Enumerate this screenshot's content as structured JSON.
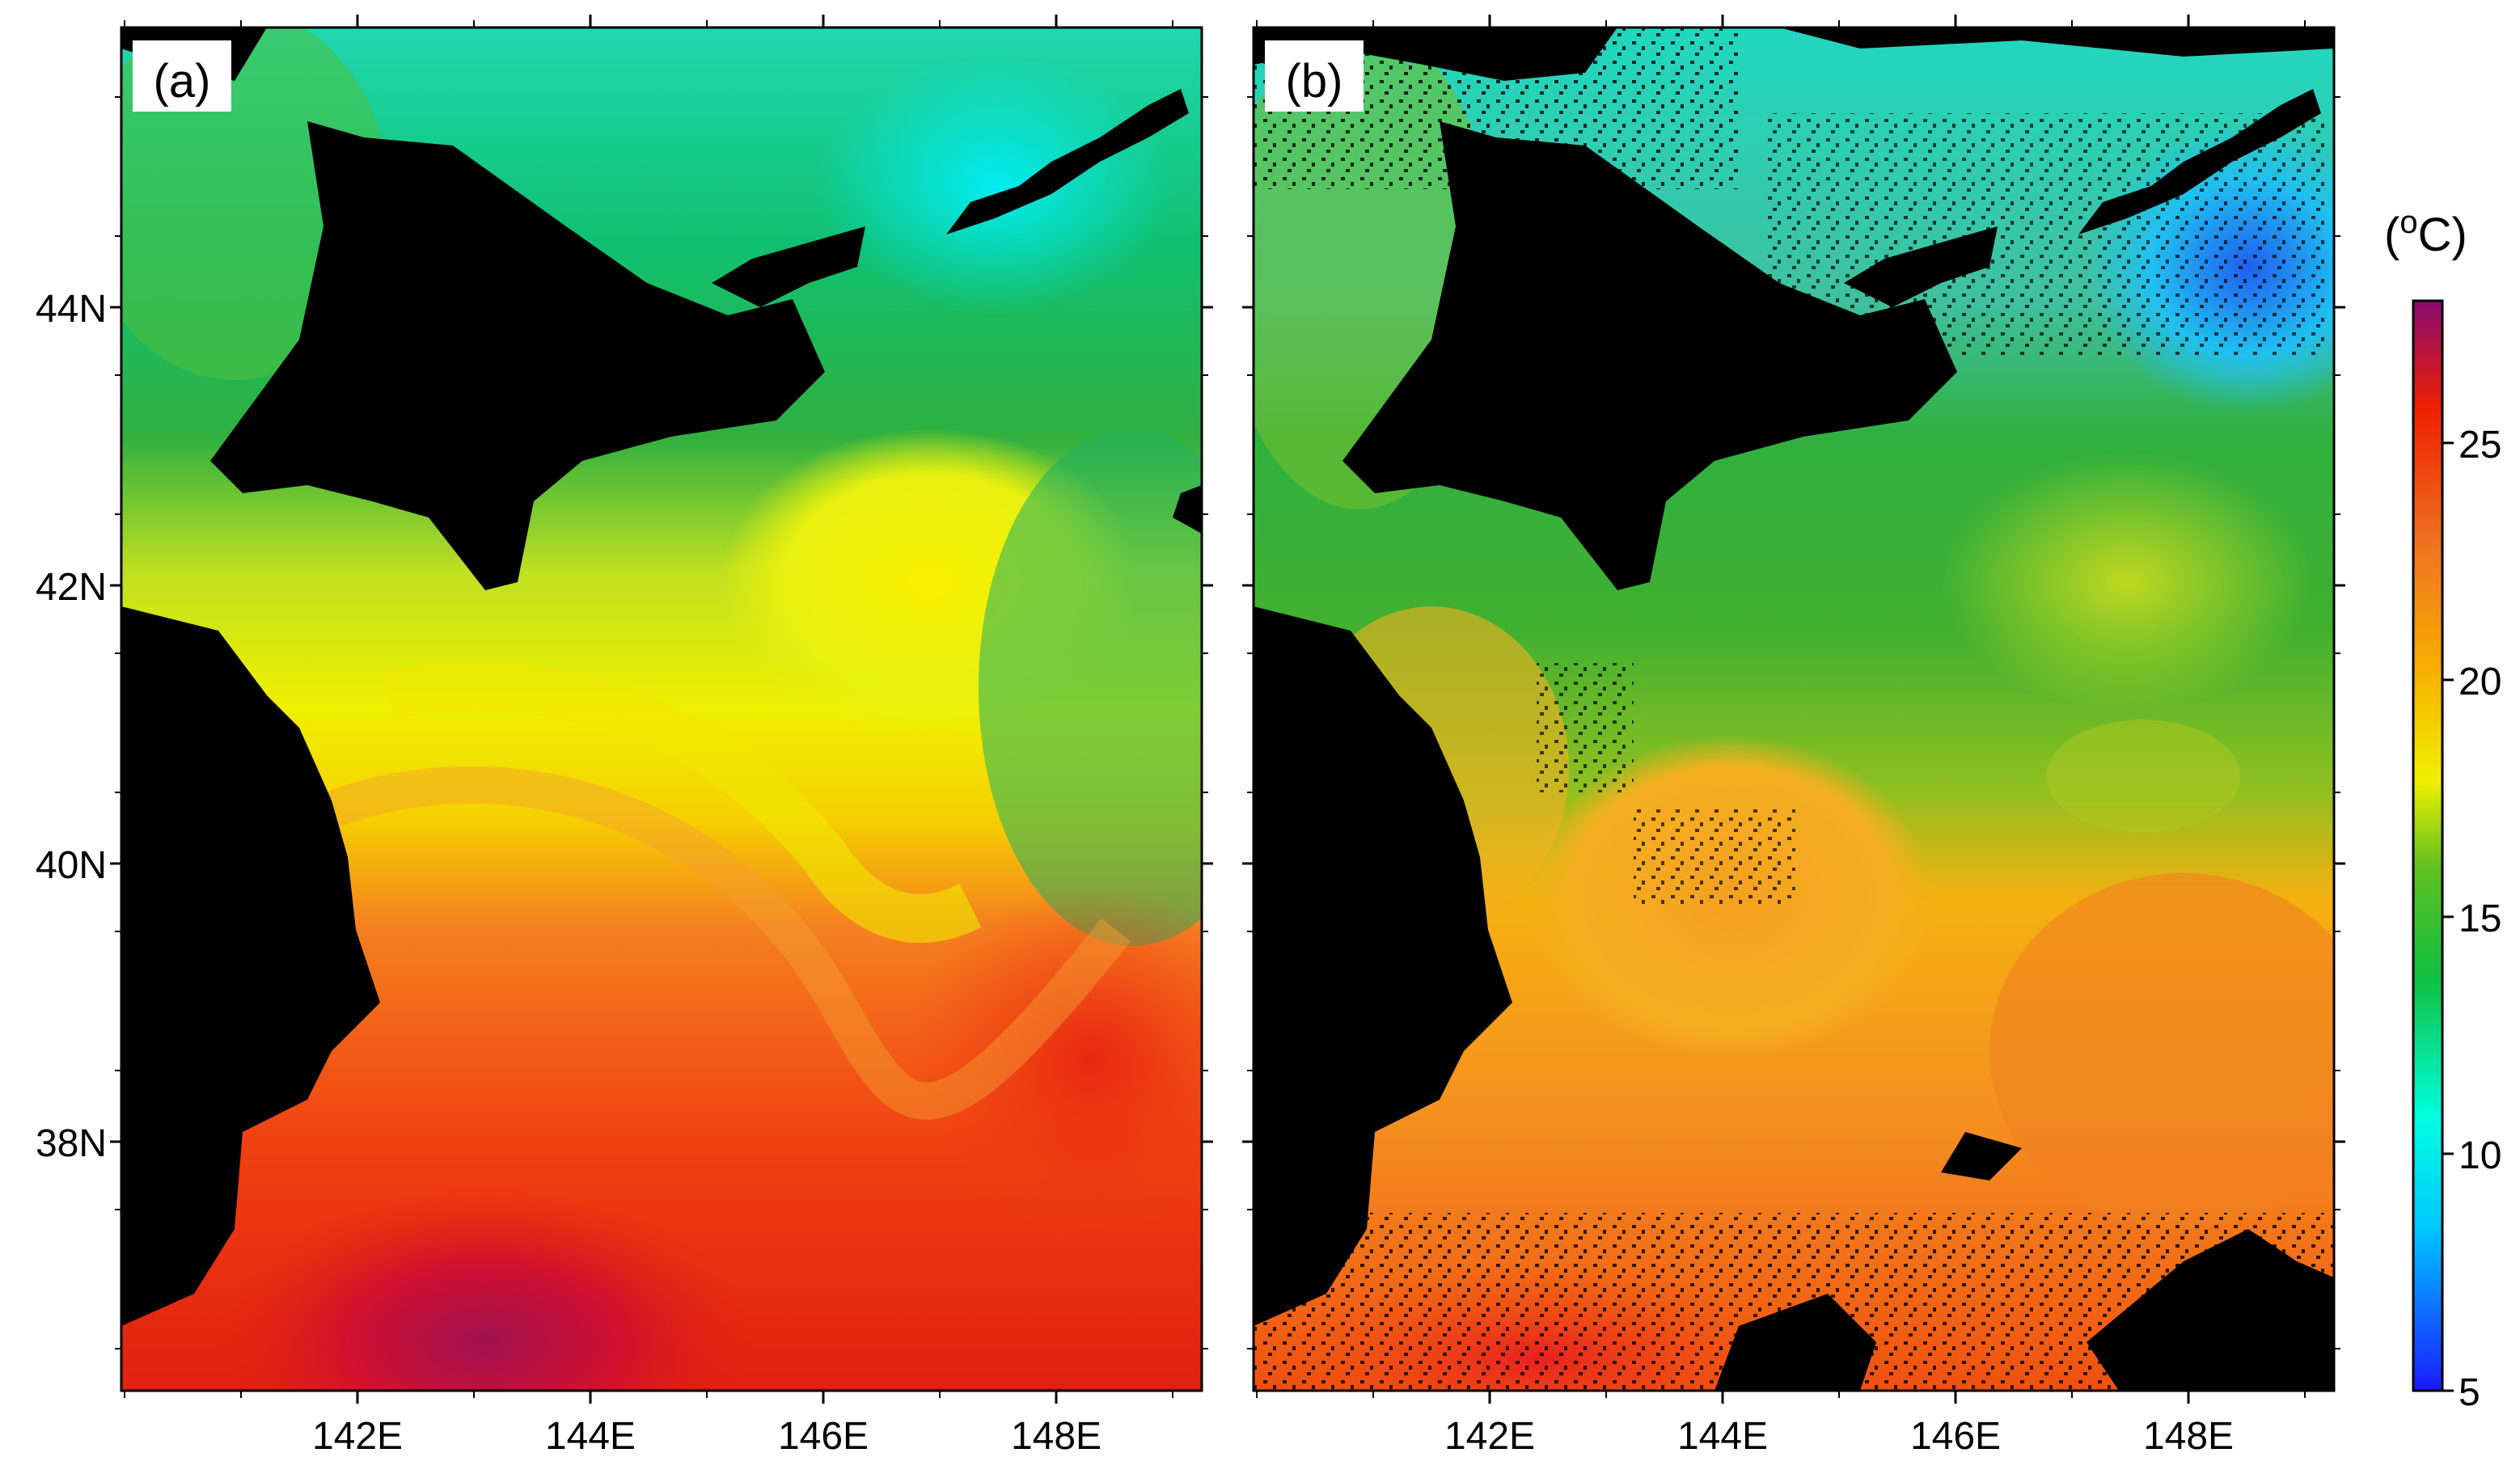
{
  "panels": [
    {
      "label": "(a)"
    },
    {
      "label": "(b)"
    }
  ],
  "lat_ticks": [
    "44N",
    "42N",
    "40N",
    "38N"
  ],
  "lon_ticks": [
    "142E",
    "144E",
    "146E",
    "148E"
  ],
  "colorbar": {
    "unit_prefix": "(",
    "unit_o": "o",
    "unit_suffix": "C)",
    "min": 5,
    "max": 28,
    "tick_labels": [
      "25",
      "20",
      "15",
      "10",
      "5"
    ],
    "colors": [
      "#1a1aff",
      "#00c8ff",
      "#00ffe0",
      "#10c040",
      "#60c020",
      "#f0f000",
      "#f8b000",
      "#f07020",
      "#f02000",
      "#8a0a70"
    ]
  },
  "map": {
    "land_color": "#000000",
    "lon_range": [
      "140E",
      "149E"
    ],
    "lat_range": [
      "36N",
      "46N"
    ]
  }
}
